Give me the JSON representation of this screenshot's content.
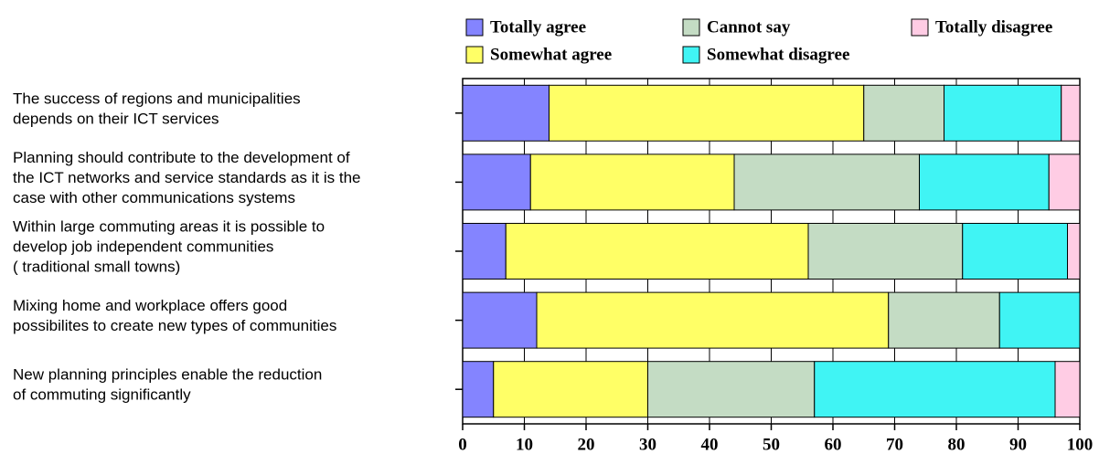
{
  "chart_data": {
    "type": "stacked-barh",
    "categories": [
      [
        "The success of regions and municipalities",
        "depends on their ICT services"
      ],
      [
        "Planning should contribute to the development of",
        "the ICT networks and service standards as it is the",
        "case with other communications systems"
      ],
      [
        "Within large commuting areas it is possible  to",
        "develop job independent communities",
        " ( traditional small towns)"
      ],
      [
        "Mixing home and workplace offers good",
        "possibilites to create new types of communities"
      ],
      [
        "New planning principles enable the reduction",
        "of commuting significantly"
      ]
    ],
    "series": [
      {
        "name": "Totally agree",
        "color": "#8484ff",
        "values": [
          14,
          11,
          7,
          12,
          5
        ]
      },
      {
        "name": "Somewhat agree",
        "color": "#ffff66",
        "values": [
          51,
          33,
          49,
          57,
          25
        ]
      },
      {
        "name": "Cannot say",
        "color": "#c4dcc4",
        "values": [
          13,
          30,
          25,
          18,
          27
        ]
      },
      {
        "name": "Somewhat disagree",
        "color": "#40f4f4",
        "values": [
          19,
          21,
          17,
          13,
          39
        ]
      },
      {
        "name": "Totally disagree",
        "color": "#ffcce4",
        "values": [
          3,
          5,
          2,
          0,
          4
        ]
      }
    ],
    "xlim": [
      0,
      100
    ],
    "xticks": [
      0,
      10,
      20,
      30,
      40,
      50,
      60,
      70,
      80,
      90,
      100
    ],
    "grid": true,
    "legend": "top"
  }
}
